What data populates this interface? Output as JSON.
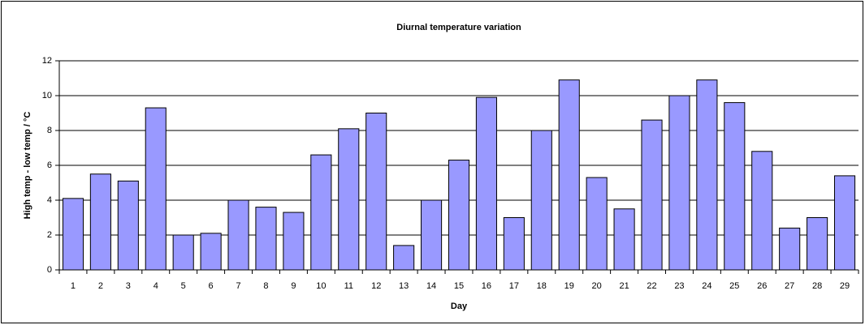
{
  "chart_data": {
    "type": "bar",
    "title": "Diurnal temperature variation",
    "x_label": "Day",
    "y_label": "High temp - low temp / °C",
    "categories": [
      "1",
      "2",
      "3",
      "4",
      "5",
      "6",
      "7",
      "8",
      "9",
      "10",
      "11",
      "12",
      "13",
      "14",
      "15",
      "16",
      "17",
      "18",
      "19",
      "20",
      "21",
      "22",
      "23",
      "24",
      "25",
      "26",
      "27",
      "28",
      "29"
    ],
    "values": [
      4.1,
      5.5,
      5.1,
      9.3,
      2.0,
      2.1,
      4.0,
      3.6,
      3.3,
      6.6,
      8.1,
      9.0,
      1.4,
      4.0,
      6.3,
      9.9,
      3.0,
      8.0,
      10.9,
      5.3,
      3.5,
      8.6,
      10.0,
      10.9,
      9.6,
      6.8,
      2.4,
      3.0,
      5.4
    ],
    "color": "#9999ff",
    "ylim": [
      0,
      12
    ],
    "yticks": [
      0,
      2,
      4,
      6,
      8,
      10,
      12
    ],
    "grid": true
  }
}
